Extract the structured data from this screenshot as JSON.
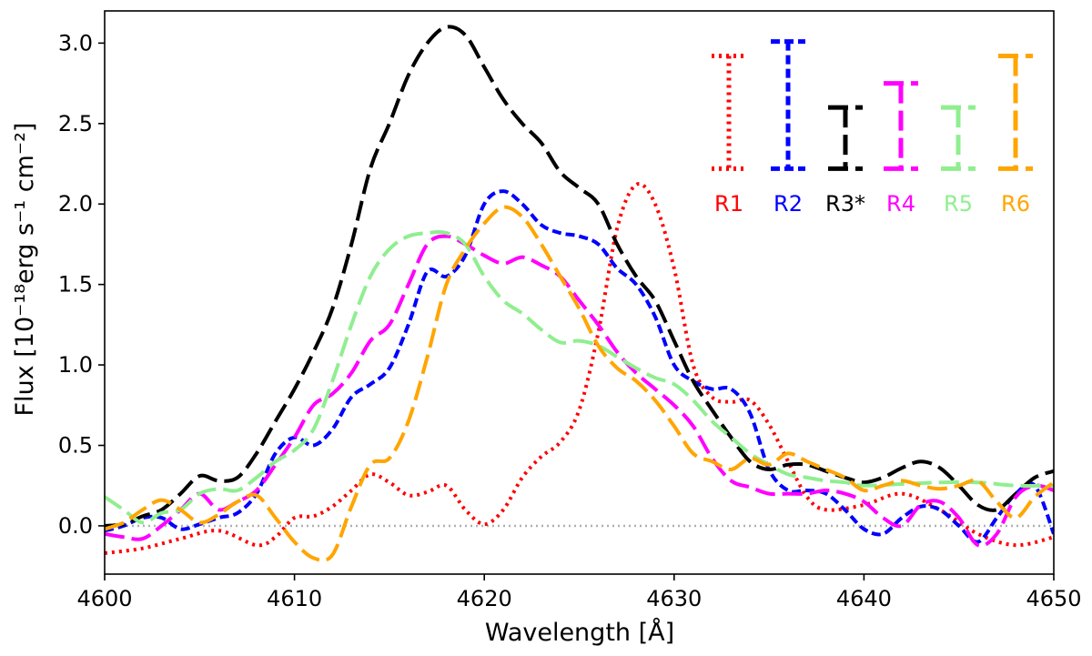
{
  "chart_data": {
    "type": "line",
    "xlabel": "Wavelength [Å]",
    "ylabel": "Flux [10⁻¹⁸erg s⁻¹ cm⁻²]",
    "xlim": [
      4600,
      4650
    ],
    "ylim": [
      -0.3,
      3.2
    ],
    "x_ticks": [
      {
        "value": 4600,
        "label": "4600"
      },
      {
        "value": 4610,
        "label": "4610"
      },
      {
        "value": 4620,
        "label": "4620"
      },
      {
        "value": 4630,
        "label": "4630"
      },
      {
        "value": 4640,
        "label": "4640"
      },
      {
        "value": 4650,
        "label": "4650"
      }
    ],
    "y_ticks": [
      {
        "value": 0.0,
        "label": "0.0"
      },
      {
        "value": 0.5,
        "label": "0.5"
      },
      {
        "value": 1.0,
        "label": "1.0"
      },
      {
        "value": 1.5,
        "label": "1.5"
      },
      {
        "value": 2.0,
        "label": "2.0"
      },
      {
        "value": 2.5,
        "label": "2.5"
      },
      {
        "value": 3.0,
        "label": "3.0"
      }
    ],
    "zero_line": true,
    "legend_placement": "top-right",
    "series": [
      {
        "name": "R1",
        "color": "#ff0000",
        "dash": "dotted",
        "x": [
          4600,
          4602,
          4604,
          4606,
          4608,
          4609,
          4610,
          4611,
          4612,
          4613,
          4614,
          4615,
          4616,
          4617,
          4618,
          4619,
          4620,
          4621,
          4622,
          4623,
          4624,
          4625,
          4626,
          4627,
          4628,
          4629,
          4630,
          4631,
          4632,
          4633,
          4634,
          4635,
          4636,
          4637,
          4638,
          4640,
          4642,
          4644,
          4646,
          4648,
          4650
        ],
        "y": [
          -0.17,
          -0.14,
          -0.08,
          -0.03,
          -0.12,
          -0.07,
          0.05,
          0.06,
          0.12,
          0.22,
          0.32,
          0.27,
          0.19,
          0.21,
          0.25,
          0.1,
          0.01,
          0.1,
          0.3,
          0.43,
          0.52,
          0.72,
          1.2,
          1.85,
          2.12,
          2.0,
          1.6,
          1.0,
          0.8,
          0.77,
          0.78,
          0.63,
          0.4,
          0.18,
          0.1,
          0.13,
          0.2,
          0.1,
          -0.05,
          -0.12,
          -0.07
        ]
      },
      {
        "name": "R2",
        "color": "#0000ff",
        "dash": "dashed",
        "x": [
          4600,
          4601,
          4602,
          4603,
          4604,
          4605,
          4606,
          4607,
          4608,
          4609,
          4610,
          4611,
          4612,
          4613,
          4614,
          4615,
          4616,
          4617,
          4618,
          4619,
          4620,
          4621,
          4622,
          4623,
          4624,
          4625,
          4626,
          4627,
          4628,
          4629,
          4630,
          4631,
          4632,
          4633,
          4634,
          4635,
          4636,
          4637,
          4638,
          4639,
          4640,
          4641,
          4642,
          4643,
          4644,
          4645,
          4646,
          4647,
          4648,
          4649,
          4650
        ],
        "y": [
          -0.03,
          0.0,
          0.05,
          0.05,
          -0.02,
          0.01,
          0.05,
          0.08,
          0.2,
          0.45,
          0.55,
          0.5,
          0.6,
          0.8,
          0.88,
          0.98,
          1.25,
          1.58,
          1.55,
          1.68,
          2.0,
          2.08,
          2.0,
          1.87,
          1.82,
          1.8,
          1.75,
          1.6,
          1.5,
          1.3,
          1.0,
          0.9,
          0.85,
          0.85,
          0.7,
          0.35,
          0.22,
          0.22,
          0.2,
          0.1,
          -0.02,
          -0.05,
          0.05,
          0.12,
          0.1,
          0.0,
          -0.1,
          0.05,
          0.2,
          0.25,
          -0.05
        ]
      },
      {
        "name": "R3*",
        "color": "#000000",
        "dash": "long-dash",
        "x": [
          4600,
          4601,
          4602,
          4603,
          4604,
          4605,
          4606,
          4607,
          4608,
          4609,
          4610,
          4611,
          4612,
          4613,
          4614,
          4615,
          4616,
          4617,
          4618,
          4619,
          4620,
          4621,
          4622,
          4623,
          4624,
          4625,
          4626,
          4627,
          4628,
          4629,
          4630,
          4631,
          4632,
          4633,
          4634,
          4635,
          4636,
          4637,
          4638,
          4639,
          4640,
          4641,
          4642,
          4643,
          4644,
          4645,
          4646,
          4647,
          4648,
          4649,
          4650
        ],
        "y": [
          0.0,
          0.01,
          0.06,
          0.1,
          0.2,
          0.31,
          0.28,
          0.3,
          0.45,
          0.65,
          0.85,
          1.08,
          1.35,
          1.75,
          2.22,
          2.5,
          2.8,
          3.0,
          3.1,
          3.05,
          2.85,
          2.65,
          2.5,
          2.38,
          2.2,
          2.1,
          2.0,
          1.75,
          1.55,
          1.4,
          1.15,
          0.9,
          0.72,
          0.55,
          0.4,
          0.35,
          0.38,
          0.38,
          0.34,
          0.3,
          0.27,
          0.3,
          0.36,
          0.4,
          0.36,
          0.25,
          0.13,
          0.1,
          0.2,
          0.3,
          0.34
        ]
      },
      {
        "name": "R4",
        "color": "#ff00ff",
        "dash": "long-dash",
        "x": [
          4600,
          4601,
          4602,
          4603,
          4604,
          4605,
          4606,
          4607,
          4608,
          4609,
          4610,
          4611,
          4612,
          4613,
          4614,
          4615,
          4616,
          4617,
          4618,
          4619,
          4620,
          4621,
          4622,
          4623,
          4624,
          4625,
          4626,
          4627,
          4628,
          4629,
          4630,
          4631,
          4632,
          4633,
          4634,
          4635,
          4636,
          4637,
          4638,
          4639,
          4640,
          4641,
          4642,
          4643,
          4644,
          4645,
          4646,
          4647,
          4648,
          4649,
          4650
        ],
        "y": [
          -0.05,
          -0.07,
          -0.08,
          0.0,
          0.1,
          0.2,
          0.1,
          0.15,
          0.22,
          0.38,
          0.55,
          0.75,
          0.82,
          0.95,
          1.15,
          1.25,
          1.5,
          1.75,
          1.8,
          1.75,
          1.68,
          1.63,
          1.67,
          1.62,
          1.55,
          1.4,
          1.25,
          1.08,
          0.95,
          0.85,
          0.75,
          0.62,
          0.42,
          0.28,
          0.24,
          0.2,
          0.2,
          0.2,
          0.22,
          0.2,
          0.15,
          0.05,
          0.0,
          0.13,
          0.15,
          0.05,
          -0.12,
          -0.05,
          0.18,
          0.25,
          0.22
        ]
      },
      {
        "name": "R5",
        "color": "#90ee90",
        "dash": "long-dash",
        "x": [
          4600,
          4601,
          4602,
          4603,
          4604,
          4605,
          4606,
          4607,
          4608,
          4609,
          4610,
          4611,
          4612,
          4613,
          4614,
          4615,
          4616,
          4617,
          4618,
          4619,
          4620,
          4621,
          4622,
          4623,
          4624,
          4625,
          4626,
          4627,
          4628,
          4629,
          4630,
          4631,
          4632,
          4633,
          4634,
          4635,
          4636,
          4637,
          4638,
          4639,
          4640,
          4642,
          4644,
          4646,
          4648,
          4650
        ],
        "y": [
          0.18,
          0.1,
          0.02,
          0.08,
          0.1,
          0.2,
          0.23,
          0.22,
          0.3,
          0.4,
          0.47,
          0.6,
          0.9,
          1.25,
          1.55,
          1.72,
          1.8,
          1.82,
          1.82,
          1.75,
          1.55,
          1.4,
          1.32,
          1.22,
          1.14,
          1.15,
          1.12,
          1.05,
          0.98,
          0.92,
          0.88,
          0.78,
          0.65,
          0.55,
          0.45,
          0.38,
          0.32,
          0.3,
          0.28,
          0.27,
          0.25,
          0.26,
          0.27,
          0.27,
          0.25,
          0.25
        ]
      },
      {
        "name": "R6",
        "color": "#ffa500",
        "dash": "long-dash",
        "x": [
          4600,
          4601,
          4602,
          4603,
          4604,
          4605,
          4606,
          4607,
          4608,
          4609,
          4610,
          4611,
          4612,
          4613,
          4614,
          4615,
          4616,
          4617,
          4618,
          4619,
          4620,
          4621,
          4622,
          4623,
          4624,
          4625,
          4626,
          4627,
          4628,
          4629,
          4630,
          4631,
          4632,
          4633,
          4634,
          4635,
          4636,
          4637,
          4638,
          4639,
          4640,
          4641,
          4642,
          4643,
          4644,
          4645,
          4646,
          4647,
          4648,
          4649,
          4650
        ],
        "y": [
          -0.02,
          0.02,
          0.1,
          0.16,
          0.1,
          0.02,
          0.07,
          0.15,
          0.19,
          0.05,
          -0.1,
          -0.2,
          -0.18,
          0.12,
          0.38,
          0.42,
          0.65,
          1.05,
          1.5,
          1.72,
          1.88,
          1.98,
          1.92,
          1.75,
          1.55,
          1.35,
          1.12,
          0.98,
          0.9,
          0.78,
          0.62,
          0.45,
          0.4,
          0.35,
          0.42,
          0.38,
          0.45,
          0.4,
          0.35,
          0.3,
          0.22,
          0.25,
          0.28,
          0.25,
          0.23,
          0.25,
          0.28,
          0.15,
          0.05,
          0.18,
          0.27
        ]
      }
    ],
    "legend": [
      {
        "label": "R1",
        "color": "#ff0000",
        "dash": "dotted",
        "top": 2.92,
        "bottom": 2.22
      },
      {
        "label": "R2",
        "color": "#0000ff",
        "dash": "dashed",
        "top": 3.01,
        "bottom": 2.22
      },
      {
        "label": "R3*",
        "color": "#000000",
        "dash": "long-dash",
        "top": 2.6,
        "bottom": 2.22
      },
      {
        "label": "R4",
        "color": "#ff00ff",
        "dash": "long-dash",
        "top": 2.75,
        "bottom": 2.22
      },
      {
        "label": "R5",
        "color": "#90ee90",
        "dash": "long-dash",
        "top": 2.6,
        "bottom": 2.22
      },
      {
        "label": "R6",
        "color": "#ffa500",
        "dash": "long-dash",
        "top": 2.92,
        "bottom": 2.22
      }
    ]
  }
}
